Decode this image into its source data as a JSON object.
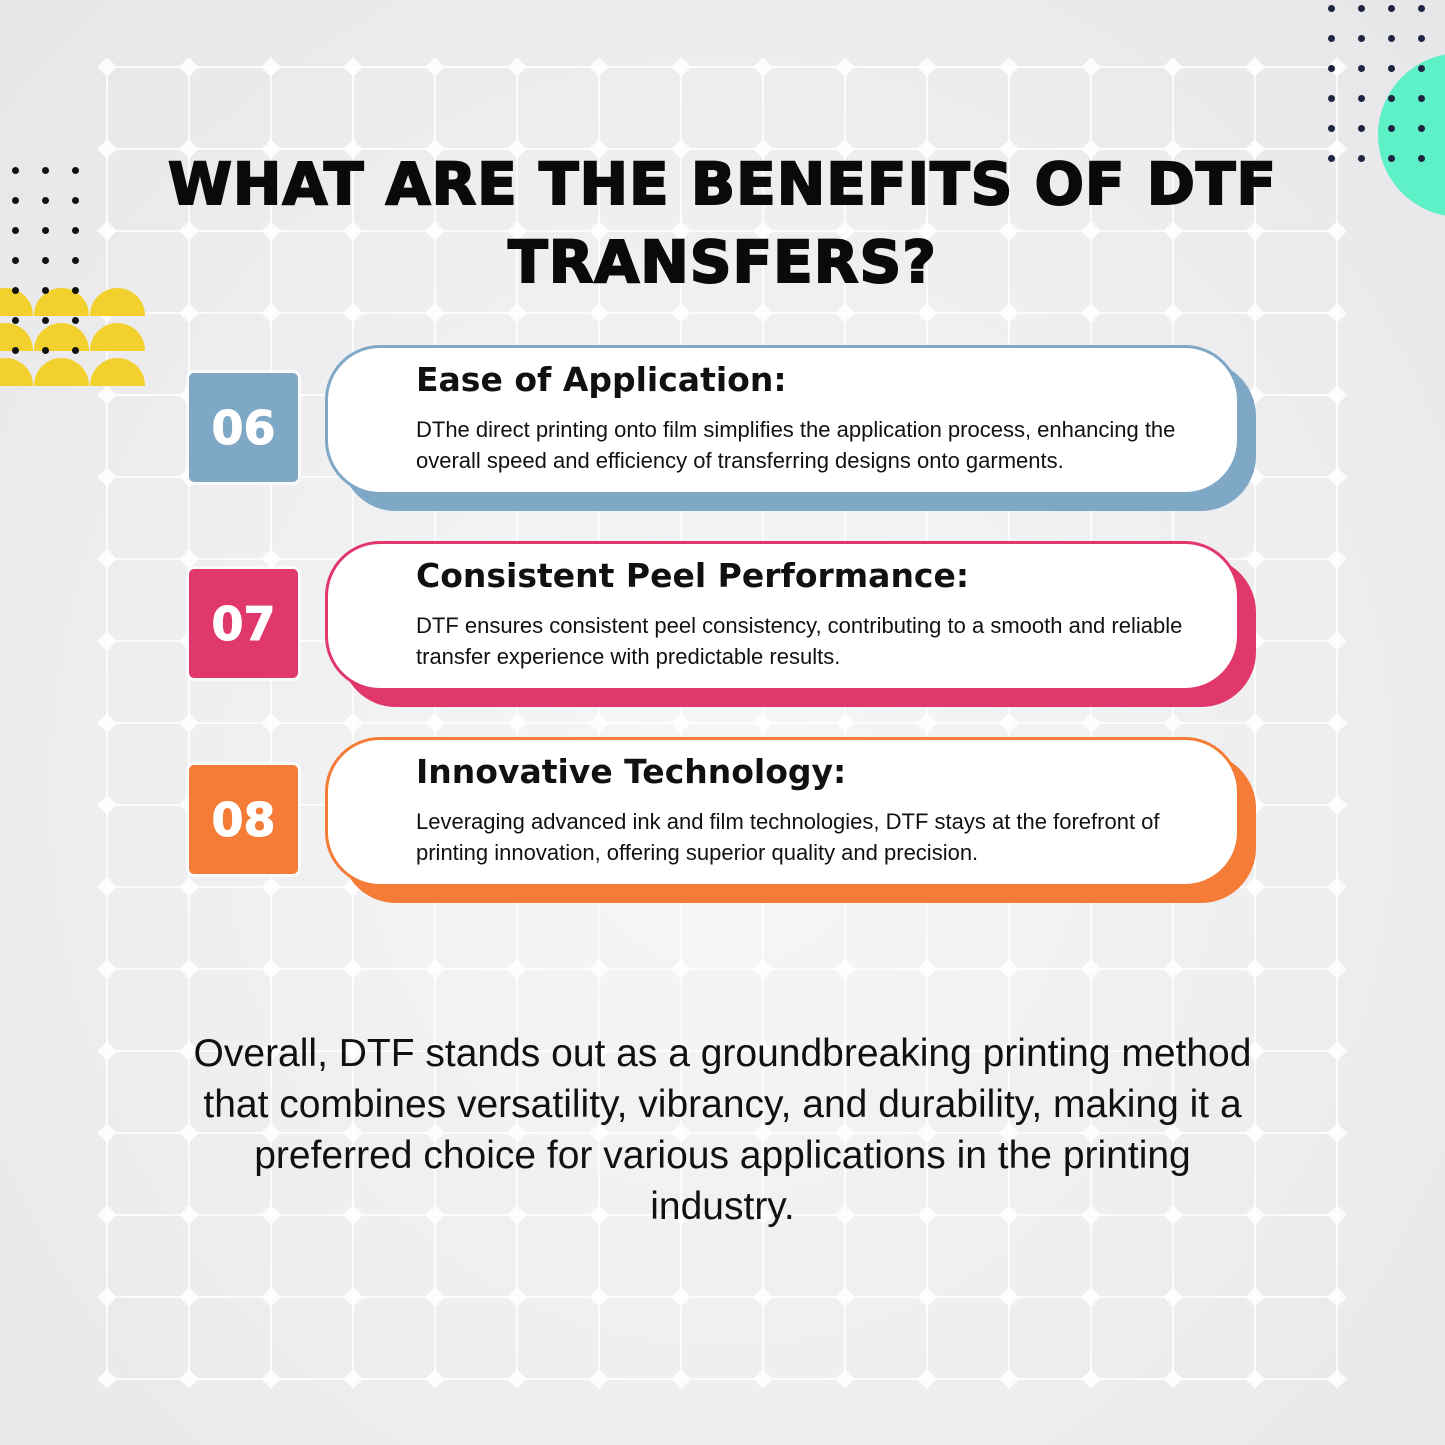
{
  "title": "WHAT ARE THE BENEFITS OF DTF TRANSFERS?",
  "colors": {
    "blue": "#7fa7c6",
    "pink": "#e0386a",
    "orange": "#f47c36",
    "yellow": "#f2d12e",
    "teal": "#5ef0c6"
  },
  "items": [
    {
      "number": "06",
      "heading": "Ease of Application:",
      "text": "DThe direct printing onto film simplifies the application process, enhancing the overall speed and efficiency of transferring designs onto garments."
    },
    {
      "number": "07",
      "heading": "Consistent Peel Performance:",
      "text": "DTF ensures consistent peel consistency, contributing to a smooth and reliable transfer experience with predictable results."
    },
    {
      "number": "08",
      "heading": "Innovative Technology:",
      "text": "Leveraging advanced ink and film technologies, DTF stays at the forefront of printing innovation, offering superior quality and precision."
    }
  ],
  "summary": "Overall, DTF stands out as a groundbreaking printing method that combines versatility, vibrancy, and durability, making it a preferred choice for various applications in the printing industry."
}
